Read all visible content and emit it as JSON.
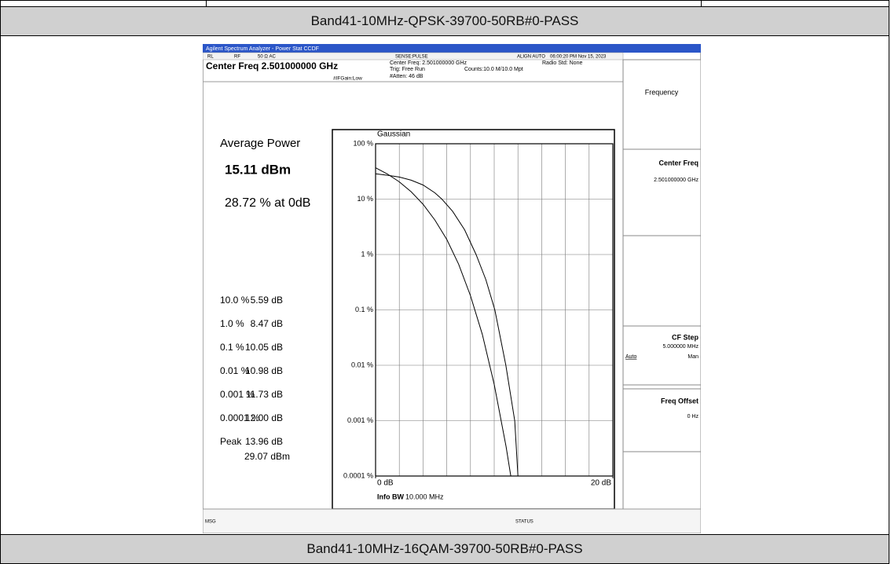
{
  "sections": [
    {
      "caption": "Band41-10MHz-QPSK-39700-50RB#0-PASS"
    },
    {
      "caption": "Band41-10MHz-16QAM-39700-50RB#0-PASS"
    }
  ],
  "screen": {
    "title_bar": "Agilent Spectrum Analyzer - Power Stat CCDF",
    "status": [
      "RL",
      "RF",
      "50 Ω  AC",
      "SENSE:PULSE",
      "ALIGN AUTO",
      "06:00:20 PM Nov 15, 2023"
    ],
    "center_freq_header": "Center Freq 2.501000000 GHz",
    "settings": {
      "center_freq": "Center Freq: 2.501000000 GHz",
      "trig": "Trig: Free Run",
      "atten": "#Atten: 46 dB",
      "if_gain": "#IFGain:Low",
      "counts": "Counts:10.0 M/10.0 Mpt",
      "radio_std": "Radio Std: None"
    },
    "softkeys": {
      "menu": "Frequency",
      "center_freq": {
        "label": "Center Freq",
        "value": "2.501000000 GHz"
      },
      "cf_step": {
        "label": "CF Step",
        "value": "5.000000 MHz",
        "auto": "Auto",
        "man": "Man"
      },
      "freq_offset": {
        "label": "Freq Offset",
        "value": "0 Hz"
      }
    },
    "measurements": {
      "average_power_label": "Average Power",
      "average_power": "15.11 dBm",
      "at_0db": "28.72 % at 0dB",
      "rows": [
        {
          "level": "10.0 %",
          "value": "5.59 dB"
        },
        {
          "level": "1.0 %",
          "value": "8.47 dB"
        },
        {
          "level": "0.1 %",
          "value": "10.05 dB"
        },
        {
          "level": "0.01 %",
          "value": "10.98 dB"
        },
        {
          "level": "0.001 %",
          "value": "11.73 dB"
        },
        {
          "level": "0.0001 %",
          "value": "12.00 dB"
        }
      ],
      "peak_label": "Peak",
      "peak_db": "13.96 dB",
      "peak_dbm": "29.07 dBm"
    },
    "plot": {
      "type": "line",
      "log_y": true,
      "xlim": [
        0,
        20
      ],
      "ylim": [
        0.0001,
        100
      ],
      "yticks": [
        {
          "value": 100,
          "label": "100 %"
        },
        {
          "value": 10,
          "label": "10 %"
        },
        {
          "value": 1,
          "label": "1 %"
        },
        {
          "value": 0.1,
          "label": "0.1 %"
        },
        {
          "value": 0.01,
          "label": "0.01 %"
        },
        {
          "value": 0.001,
          "label": "0.001 %"
        },
        {
          "value": 0.0001,
          "label": "0.0001 %"
        }
      ],
      "xticks": [
        {
          "value": 0,
          "label": "0 dB"
        },
        {
          "value": 20,
          "label": "20 dB"
        }
      ],
      "xgrid": [
        2,
        4,
        6,
        8,
        10,
        12,
        14,
        16,
        18
      ],
      "info_bw_label": "Info BW",
      "info_bw": "10.000 MHz",
      "series": [
        {
          "name": "Gaussian",
          "color": "#000000",
          "x": [
            0,
            1,
            2,
            3,
            4,
            5,
            6,
            7,
            8,
            9,
            10,
            11,
            11.4
          ],
          "values": [
            36.8,
            28.4,
            20.5,
            13.6,
            8.1,
            4.2,
            1.87,
            0.67,
            0.18,
            0.036,
            0.0045,
            0.00034,
            0.0001
          ]
        },
        {
          "color": "#000000",
          "x": [
            0,
            1,
            2,
            3,
            4,
            5,
            5.59,
            6.5,
            7.5,
            8.47,
            9.3,
            10.05,
            10.98,
            11.73,
            12,
            20
          ],
          "values": [
            28.72,
            27,
            25,
            22,
            18,
            13,
            10,
            6,
            2.8,
            1,
            0.35,
            0.1,
            0.01,
            0.001,
            0.0001,
            0.0001
          ]
        }
      ]
    }
  }
}
